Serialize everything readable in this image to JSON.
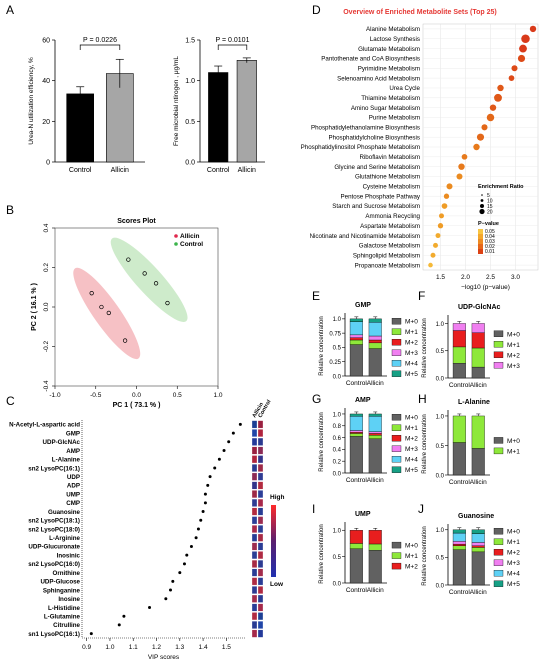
{
  "panel_letters": [
    "A",
    "B",
    "C",
    "D",
    "E",
    "F",
    "G",
    "H",
    "I",
    "J"
  ],
  "colors": {
    "control": "#000000",
    "allicin": "#a6a6a6",
    "pca_allicin": "#f4b6bb",
    "pca_control": "#c5e7c2",
    "pca_allicin_marker": "#e0284d",
    "pca_control_marker": "#3cb44b",
    "d_title": "#e53935",
    "d_dot": "#f36f21",
    "M0": "#616161",
    "M1": "#8ee83a",
    "M2": "#e81e1e",
    "M3": "#f07ff0",
    "M4": "#5ed1f5",
    "M5": "#16a085"
  },
  "chart_data": [
    {
      "id": "A1",
      "type": "bar",
      "categories": [
        "Control",
        "Allicin"
      ],
      "values": [
        33.5,
        43.5
      ],
      "errors": [
        3.5,
        7
      ],
      "ylabel": "Urea-N utilization efficiency, %",
      "ylim": [
        0,
        60
      ],
      "yticks": [
        0,
        20,
        40,
        60
      ],
      "annotation": "P = 0.0226"
    },
    {
      "id": "A2",
      "type": "bar",
      "categories": [
        "Control",
        "Allicin"
      ],
      "values": [
        1.1,
        1.25
      ],
      "errors": [
        0.08,
        0.03
      ],
      "ylabel": "Free microbial ntirogen , μg/mL",
      "ylim": [
        0,
        1.5
      ],
      "yticks": [
        0.0,
        0.5,
        1.0,
        1.5
      ],
      "annotation": "P = 0.0101"
    },
    {
      "id": "B",
      "type": "scatter",
      "title": "Scores Plot",
      "xlabel": "PC 1 ( 73.1 % )",
      "ylabel": "PC 2 ( 16.1 % )",
      "xlim": [
        -1.0,
        1.0
      ],
      "ylim": [
        -0.4,
        0.4
      ],
      "xticks": [
        -1.0,
        -0.5,
        0.0,
        0.5,
        1.0
      ],
      "yticks": [
        -0.4,
        -0.2,
        0.0,
        0.2,
        0.4
      ],
      "legend": [
        "Allicin",
        "Control"
      ],
      "series": [
        {
          "name": "Allicin",
          "points": [
            [
              -0.55,
              0.07
            ],
            [
              -0.43,
              0.0
            ],
            [
              -0.34,
              -0.03
            ],
            [
              -0.14,
              -0.17
            ]
          ]
        },
        {
          "name": "Control",
          "points": [
            [
              -0.1,
              0.24
            ],
            [
              0.1,
              0.17
            ],
            [
              0.24,
              0.12
            ],
            [
              0.38,
              0.02
            ]
          ]
        }
      ]
    },
    {
      "id": "C",
      "type": "scatter",
      "xlabel": "VIP scores",
      "xticks": [
        0.9,
        1.0,
        1.1,
        1.2,
        1.3,
        1.4,
        1.5
      ],
      "xlim": [
        0.88,
        1.58
      ],
      "heatmap_header": [
        "Allicin",
        "Control"
      ],
      "legend_labels": [
        "High",
        "Low"
      ],
      "categories": [
        "N-Acetyl-L-aspartic acid",
        "GMP",
        "UDP-GlcNAc",
        "AMP",
        "L-Alanine",
        "sn2 LysoPC(16:1)",
        "UDP",
        "ADP",
        "UMP",
        "CMP",
        "Guanosine",
        "sn2 LysoPC(18:1)",
        "sn2 LysoPC(18:0)",
        "L-Arginine",
        "UDP-Glucuronate",
        "Inosinic",
        "sn2 LysoPC(16:0)",
        "Ornithine",
        "UDP-Glucose",
        "Sphinganine",
        "Inosine",
        "L-Histidine",
        "L-Glutamine",
        "Citrulline",
        "sn1 LysoPC(16:1)"
      ],
      "values": [
        1.56,
        1.53,
        1.51,
        1.49,
        1.47,
        1.45,
        1.43,
        1.42,
        1.41,
        1.41,
        1.4,
        1.39,
        1.38,
        1.37,
        1.35,
        1.33,
        1.32,
        1.3,
        1.27,
        1.26,
        1.24,
        1.17,
        1.06,
        1.04,
        0.92
      ]
    },
    {
      "id": "D",
      "type": "scatter",
      "title": "Overview of Enriched Metabolite Sets (Top 25)",
      "xlabel": "−log10 (p−value)",
      "xticks": [
        1.5,
        2.0,
        2.5,
        3.0
      ],
      "xlim": [
        1.15,
        3.45
      ],
      "legend_size_title": "Enrichment Ratio",
      "legend_size": [
        "5",
        "10",
        "15",
        "20"
      ],
      "legend_color_title": "P−value",
      "legend_color": [
        "0.05",
        "0.04",
        "0.03",
        "0.02",
        "0.01"
      ],
      "categories": [
        "Alanine Metabolism",
        "Lactose Synthesis",
        "Glutamate Metabolism",
        "Pantothenate and CoA Biosynthesis",
        "Pyrimidine Metabolism",
        "Selenoamino Acid Metabolism",
        "Urea Cycle",
        "Thiamine Metabolism",
        "Amino Sugar Metabolism",
        "Purine Metabolism",
        "Phosphatidylethanolamine Biosynthesis",
        "Phosphatidylcholine Biosynthesis",
        "Phosphatidylinositol Phosphate Metabolism",
        "Riboflavin Metabolism",
        "Glycine and Serine Metabolism",
        "Glutathione Metabolism",
        "Cysteine Metabolism",
        "Pentose Phosphate Pathway",
        "Starch and Sucrose Metabolism",
        "Ammonia Recycling",
        "Aspartate Metabolism",
        "Nicotinate and Nicotinamide Metabolism",
        "Galactose Metabolism",
        "Sphingolipid Metabolism",
        "Propanoate Metabolism"
      ],
      "values": [
        3.35,
        3.2,
        3.15,
        3.12,
        2.98,
        2.92,
        2.7,
        2.65,
        2.55,
        2.5,
        2.38,
        2.3,
        2.22,
        1.98,
        1.92,
        1.88,
        1.68,
        1.62,
        1.58,
        1.52,
        1.5,
        1.45,
        1.4,
        1.35,
        1.3
      ],
      "sizes": [
        10,
        16,
        14,
        12,
        9,
        8,
        10,
        14,
        10,
        13,
        9,
        12,
        10,
        8,
        10,
        9,
        9,
        7,
        8,
        6,
        7,
        6,
        6,
        6,
        5
      ]
    },
    {
      "id": "E",
      "type": "bar",
      "title": "GMP",
      "ylabel": "Relative concentration",
      "categories": [
        "Control",
        "Allicin"
      ],
      "yticks": [
        0.0,
        0.25,
        0.5,
        0.75,
        1.0
      ],
      "ylim": [
        0,
        1.05
      ],
      "legend": [
        "M+0",
        "M+1",
        "M+2",
        "M+3",
        "M+4",
        "M+5"
      ],
      "series": [
        {
          "name": "M+0",
          "values": [
            0.55,
            0.48
          ]
        },
        {
          "name": "M+1",
          "values": [
            0.08,
            0.1
          ]
        },
        {
          "name": "M+2",
          "values": [
            0.04,
            0.05
          ]
        },
        {
          "name": "M+3",
          "values": [
            0.05,
            0.07
          ]
        },
        {
          "name": "M+4",
          "values": [
            0.23,
            0.24
          ]
        },
        {
          "name": "M+5",
          "values": [
            0.05,
            0.06
          ]
        }
      ]
    },
    {
      "id": "F",
      "type": "bar",
      "title": "UDP-GlcNAc",
      "ylabel": "Relative concentration",
      "categories": [
        "Control",
        "Allicin"
      ],
      "yticks": [
        0.0,
        0.5,
        1.0
      ],
      "ylim": [
        0,
        1.1
      ],
      "legend": [
        "M+0",
        "M+1",
        "M+2",
        "M+3"
      ],
      "series": [
        {
          "name": "M+0",
          "values": [
            0.27,
            0.2
          ]
        },
        {
          "name": "M+1",
          "values": [
            0.3,
            0.35
          ]
        },
        {
          "name": "M+2",
          "values": [
            0.3,
            0.28
          ]
        },
        {
          "name": "M+3",
          "values": [
            0.13,
            0.17
          ]
        }
      ]
    },
    {
      "id": "G",
      "type": "bar",
      "title": "AMP",
      "ylabel": "Relative concentration",
      "categories": [
        "Control",
        "Allicin"
      ],
      "yticks": [
        0.0,
        0.2,
        0.4,
        0.6,
        0.8,
        1.0
      ],
      "ylim": [
        0,
        1.05
      ],
      "legend": [
        "M+0",
        "M+1",
        "M+2",
        "M+3",
        "M+4",
        "M+5"
      ],
      "series": [
        {
          "name": "M+0",
          "values": [
            0.62,
            0.58
          ]
        },
        {
          "name": "M+1",
          "values": [
            0.05,
            0.06
          ]
        },
        {
          "name": "M+2",
          "values": [
            0.02,
            0.03
          ]
        },
        {
          "name": "M+3",
          "values": [
            0.03,
            0.03
          ]
        },
        {
          "name": "M+4",
          "values": [
            0.24,
            0.26
          ]
        },
        {
          "name": "M+5",
          "values": [
            0.04,
            0.04
          ]
        }
      ]
    },
    {
      "id": "H",
      "type": "bar",
      "title": "L-Alanine",
      "ylabel": "Relative concentration",
      "categories": [
        "Control",
        "Allicin"
      ],
      "yticks": [
        0.0,
        0.5,
        1.0
      ],
      "ylim": [
        0,
        1.05
      ],
      "legend": [
        "M+0",
        "M+1"
      ],
      "series": [
        {
          "name": "M+0",
          "values": [
            0.55,
            0.45
          ]
        },
        {
          "name": "M+1",
          "values": [
            0.45,
            0.55
          ]
        }
      ]
    },
    {
      "id": "I",
      "type": "bar",
      "title": "UMP",
      "ylabel": "Relative concentration",
      "categories": [
        "Control",
        "Allicin"
      ],
      "yticks": [
        0.0,
        0.5,
        1.0
      ],
      "ylim": [
        0,
        1.1
      ],
      "legend": [
        "M+0",
        "M+1",
        "M+2"
      ],
      "series": [
        {
          "name": "M+0",
          "values": [
            0.65,
            0.62
          ]
        },
        {
          "name": "M+1",
          "values": [
            0.1,
            0.12
          ]
        },
        {
          "name": "M+2",
          "values": [
            0.25,
            0.26
          ]
        }
      ]
    },
    {
      "id": "J",
      "type": "bar",
      "title": "Guanosine",
      "ylabel": "Relative concentration",
      "categories": [
        "Control",
        "Allicin"
      ],
      "yticks": [
        0.0,
        0.5,
        1.0
      ],
      "ylim": [
        0,
        1.05
      ],
      "legend": [
        "M+0",
        "M+1",
        "M+2",
        "M+3",
        "M+4",
        "M+5"
      ],
      "series": [
        {
          "name": "M+0",
          "values": [
            0.64,
            0.6
          ]
        },
        {
          "name": "M+1",
          "values": [
            0.07,
            0.08
          ]
        },
        {
          "name": "M+2",
          "values": [
            0.03,
            0.03
          ]
        },
        {
          "name": "M+3",
          "values": [
            0.05,
            0.06
          ]
        },
        {
          "name": "M+4",
          "values": [
            0.15,
            0.16
          ]
        },
        {
          "name": "M+5",
          "values": [
            0.06,
            0.07
          ]
        }
      ]
    }
  ]
}
